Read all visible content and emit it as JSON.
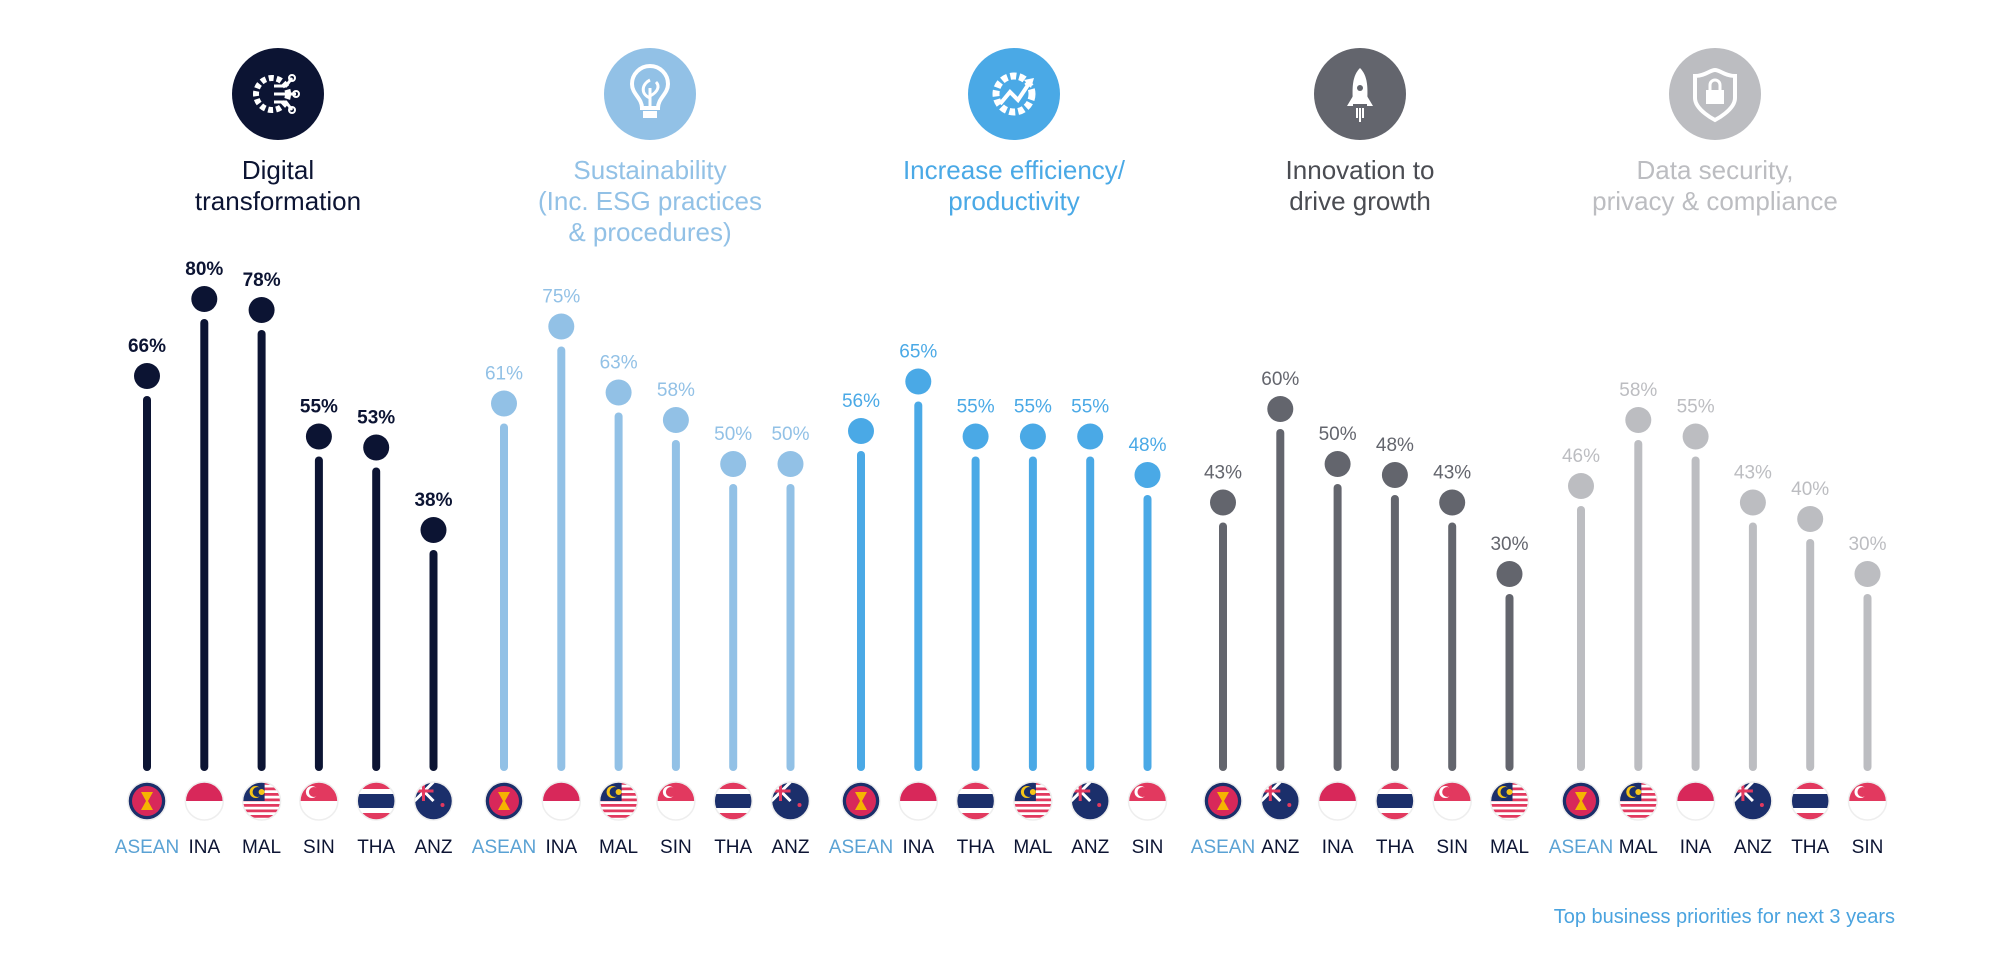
{
  "chart_data": {
    "type": "lollipop",
    "ylim": [
      0,
      100
    ],
    "grid": false,
    "footer": "Top business priorities for next 3 years",
    "label_highlight_color": "#5aa2d4",
    "label_color": "#0c1433",
    "groups": [
      {
        "title": "Digital transformation",
        "title_lines": [
          "Digital",
          "transformation"
        ],
        "icon": "gear-circuit-icon",
        "color": "#0c1433",
        "title_color": "#0c1433",
        "categories": [
          "ASEAN",
          "INA",
          "MAL",
          "SIN",
          "THA",
          "ANZ"
        ],
        "values": [
          66,
          80,
          78,
          55,
          53,
          38
        ],
        "labels": [
          "66%",
          "80%",
          "78%",
          "55%",
          "53%",
          "38%"
        ]
      },
      {
        "title": "Sustainability (Inc. ESG practices & procedures)",
        "title_lines": [
          "Sustainability",
          "(Inc. ESG practices",
          "& procedures)"
        ],
        "icon": "lightbulb-leaf-icon",
        "color": "#92c1e6",
        "title_color": "#92c1e6",
        "categories": [
          "ASEAN",
          "INA",
          "MAL",
          "SIN",
          "THA",
          "ANZ"
        ],
        "values": [
          61,
          75,
          63,
          58,
          50,
          50
        ],
        "labels": [
          "61%",
          "75%",
          "63%",
          "58%",
          "50%",
          "50%"
        ]
      },
      {
        "title": "Increase efficiency/ productivity",
        "title_lines": [
          "Increase efficiency/",
          "productivity"
        ],
        "icon": "gear-growth-icon",
        "color": "#4aa9e6",
        "title_color": "#4aa9e6",
        "categories": [
          "ASEAN",
          "INA",
          "THA",
          "MAL",
          "ANZ",
          "SIN"
        ],
        "values": [
          56,
          65,
          55,
          55,
          55,
          48
        ],
        "labels": [
          "56%",
          "65%",
          "55%",
          "55%",
          "55%",
          "48%"
        ]
      },
      {
        "title": "Innovation to drive growth",
        "title_lines": [
          "Innovation to",
          "drive growth"
        ],
        "icon": "rocket-icon",
        "color": "#63656d",
        "title_color": "#4a4c52",
        "categories": [
          "ASEAN",
          "ANZ",
          "INA",
          "THA",
          "SIN",
          "MAL"
        ],
        "values": [
          43,
          60,
          50,
          48,
          43,
          30
        ],
        "labels": [
          "43%",
          "60%",
          "50%",
          "48%",
          "43%",
          "30%"
        ]
      },
      {
        "title": "Data security, privacy & compliance",
        "title_lines": [
          "Data security,",
          "privacy & compliance"
        ],
        "icon": "shield-lock-icon",
        "color": "#bcbdc1",
        "title_color": "#bcbdc1",
        "categories": [
          "ASEAN",
          "MAL",
          "INA",
          "ANZ",
          "THA",
          "SIN"
        ],
        "values": [
          46,
          58,
          55,
          43,
          40,
          30
        ],
        "labels": [
          "46%",
          "58%",
          "55%",
          "43%",
          "40%",
          "30%"
        ]
      }
    ]
  }
}
